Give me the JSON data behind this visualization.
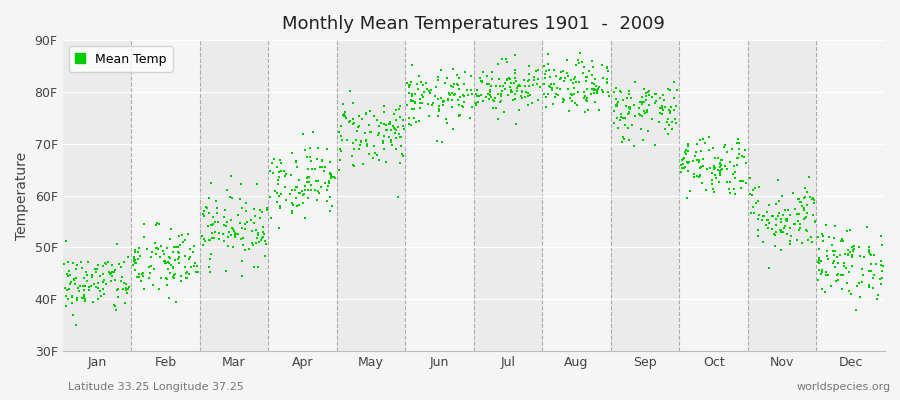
{
  "title": "Monthly Mean Temperatures 1901  -  2009",
  "ylabel": "Temperature",
  "xlabel_bottom_left": "Latitude 33.25 Longitude 37.25",
  "xlabel_bottom_right": "worldspecies.org",
  "ylim": [
    30,
    90
  ],
  "yticks": [
    30,
    40,
    50,
    60,
    70,
    80,
    90
  ],
  "ytick_labels": [
    "30F",
    "40F",
    "50F",
    "60F",
    "70F",
    "80F",
    "90F"
  ],
  "months": [
    "Jan",
    "Feb",
    "Mar",
    "Apr",
    "May",
    "Jun",
    "Jul",
    "Aug",
    "Sep",
    "Oct",
    "Nov",
    "Dec"
  ],
  "dot_color": "#00cc00",
  "dot_size": 2.5,
  "background_color": "#f5f5f5",
  "plot_bg_color": "#f5f5f5",
  "legend_label": "Mean Temp",
  "num_years": 109,
  "monthly_means": [
    43.0,
    47.0,
    54.0,
    63.0,
    72.0,
    78.5,
    81.0,
    81.0,
    76.5,
    66.0,
    56.0,
    47.0
  ],
  "monthly_stds": [
    3.0,
    3.5,
    3.5,
    3.5,
    3.5,
    2.8,
    2.5,
    2.5,
    3.0,
    3.0,
    3.5,
    3.5
  ]
}
